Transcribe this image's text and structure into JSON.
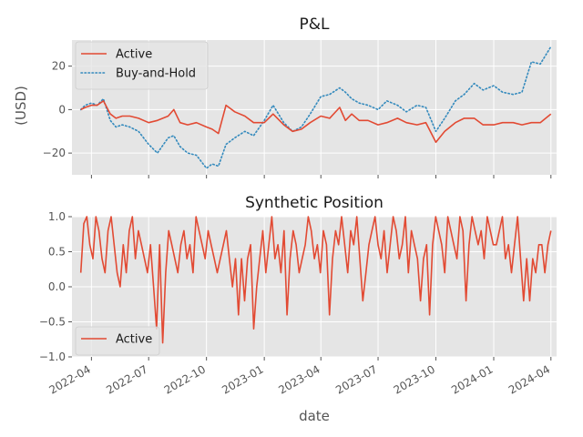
{
  "chart_data": [
    {
      "type": "line",
      "title": "P&L",
      "ylabel": "(USD)",
      "xlabel": "",
      "xlim": [
        "2022-03-01",
        "2024-04-10"
      ],
      "ylim": [
        -30,
        32
      ],
      "yticks": [
        -20,
        0,
        20
      ],
      "grid": true,
      "legend_position": "top-left",
      "series": [
        {
          "name": "Active",
          "style": "solid",
          "color": "#E24A33",
          "points": [
            [
              "2022-03-15",
              0
            ],
            [
              "2022-03-22",
              1
            ],
            [
              "2022-04-01",
              2
            ],
            [
              "2022-04-10",
              2
            ],
            [
              "2022-04-20",
              4
            ],
            [
              "2022-05-01",
              -2
            ],
            [
              "2022-05-10",
              -4
            ],
            [
              "2022-05-20",
              -3
            ],
            [
              "2022-06-01",
              -3
            ],
            [
              "2022-06-15",
              -4
            ],
            [
              "2022-07-01",
              -6
            ],
            [
              "2022-07-15",
              -5
            ],
            [
              "2022-08-01",
              -3
            ],
            [
              "2022-08-10",
              0
            ],
            [
              "2022-08-20",
              -6
            ],
            [
              "2022-09-01",
              -7
            ],
            [
              "2022-09-15",
              -6
            ],
            [
              "2022-10-01",
              -8
            ],
            [
              "2022-10-10",
              -9
            ],
            [
              "2022-10-20",
              -11
            ],
            [
              "2022-11-01",
              2
            ],
            [
              "2022-11-15",
              -1
            ],
            [
              "2022-12-01",
              -3
            ],
            [
              "2022-12-15",
              -6
            ],
            [
              "2023-01-01",
              -6
            ],
            [
              "2023-01-15",
              -2
            ],
            [
              "2023-02-01",
              -7
            ],
            [
              "2023-02-15",
              -10
            ],
            [
              "2023-03-01",
              -9
            ],
            [
              "2023-03-15",
              -6
            ],
            [
              "2023-04-01",
              -3
            ],
            [
              "2023-04-15",
              -4
            ],
            [
              "2023-05-01",
              1
            ],
            [
              "2023-05-10",
              -5
            ],
            [
              "2023-05-20",
              -2
            ],
            [
              "2023-06-01",
              -5
            ],
            [
              "2023-06-15",
              -5
            ],
            [
              "2023-07-01",
              -7
            ],
            [
              "2023-07-15",
              -6
            ],
            [
              "2023-08-01",
              -4
            ],
            [
              "2023-08-15",
              -6
            ],
            [
              "2023-09-01",
              -7
            ],
            [
              "2023-09-15",
              -6
            ],
            [
              "2023-10-01",
              -15
            ],
            [
              "2023-10-15",
              -10
            ],
            [
              "2023-11-01",
              -6
            ],
            [
              "2023-11-15",
              -4
            ],
            [
              "2023-12-01",
              -4
            ],
            [
              "2023-12-15",
              -7
            ],
            [
              "2024-01-01",
              -7
            ],
            [
              "2024-01-15",
              -6
            ],
            [
              "2024-02-01",
              -6
            ],
            [
              "2024-02-15",
              -7
            ],
            [
              "2024-03-01",
              -6
            ],
            [
              "2024-03-15",
              -6
            ],
            [
              "2024-04-01",
              -2
            ]
          ]
        },
        {
          "name": "Buy-and-Hold",
          "style": "dotted",
          "color": "#348ABD",
          "points": [
            [
              "2022-03-15",
              0
            ],
            [
              "2022-03-22",
              2
            ],
            [
              "2022-04-01",
              3
            ],
            [
              "2022-04-10",
              2
            ],
            [
              "2022-04-20",
              5
            ],
            [
              "2022-05-01",
              -5
            ],
            [
              "2022-05-10",
              -8
            ],
            [
              "2022-05-20",
              -7
            ],
            [
              "2022-06-01",
              -8
            ],
            [
              "2022-06-15",
              -10
            ],
            [
              "2022-07-01",
              -16
            ],
            [
              "2022-07-15",
              -20
            ],
            [
              "2022-08-01",
              -13
            ],
            [
              "2022-08-10",
              -12
            ],
            [
              "2022-08-20",
              -17
            ],
            [
              "2022-09-01",
              -20
            ],
            [
              "2022-09-15",
              -21
            ],
            [
              "2022-10-01",
              -27
            ],
            [
              "2022-10-10",
              -25
            ],
            [
              "2022-10-20",
              -26
            ],
            [
              "2022-11-01",
              -16
            ],
            [
              "2022-11-15",
              -13
            ],
            [
              "2022-12-01",
              -10
            ],
            [
              "2022-12-15",
              -12
            ],
            [
              "2023-01-01",
              -5
            ],
            [
              "2023-01-15",
              2
            ],
            [
              "2023-02-01",
              -6
            ],
            [
              "2023-02-15",
              -10
            ],
            [
              "2023-03-01",
              -8
            ],
            [
              "2023-03-15",
              -2
            ],
            [
              "2023-04-01",
              6
            ],
            [
              "2023-04-15",
              7
            ],
            [
              "2023-05-01",
              10
            ],
            [
              "2023-05-10",
              8
            ],
            [
              "2023-05-20",
              5
            ],
            [
              "2023-06-01",
              3
            ],
            [
              "2023-06-15",
              2
            ],
            [
              "2023-07-01",
              0
            ],
            [
              "2023-07-15",
              4
            ],
            [
              "2023-08-01",
              2
            ],
            [
              "2023-08-15",
              -1
            ],
            [
              "2023-09-01",
              2
            ],
            [
              "2023-09-15",
              1
            ],
            [
              "2023-10-01",
              -10
            ],
            [
              "2023-10-15",
              -4
            ],
            [
              "2023-11-01",
              4
            ],
            [
              "2023-11-15",
              7
            ],
            [
              "2023-12-01",
              12
            ],
            [
              "2023-12-15",
              9
            ],
            [
              "2024-01-01",
              11
            ],
            [
              "2024-01-15",
              8
            ],
            [
              "2024-02-01",
              7
            ],
            [
              "2024-02-15",
              8
            ],
            [
              "2024-03-01",
              22
            ],
            [
              "2024-03-15",
              21
            ],
            [
              "2024-04-01",
              29
            ]
          ]
        }
      ]
    },
    {
      "type": "line",
      "title": "Synthetic Position",
      "xlabel": "date",
      "ylabel": "",
      "xlim": [
        "2022-03-01",
        "2024-04-10"
      ],
      "ylim": [
        -1.0,
        1.0
      ],
      "yticks": [
        -1.0,
        -0.5,
        0.0,
        0.5,
        1.0
      ],
      "ytick_labels": [
        "−1.0",
        "−0.5",
        "0.0",
        "0.5",
        "1.0"
      ],
      "xticks": [
        "2022-04-01",
        "2022-07-01",
        "2022-10-01",
        "2023-01-01",
        "2023-04-01",
        "2023-07-01",
        "2023-10-01",
        "2024-01-01",
        "2024-04-01"
      ],
      "xtick_labels": [
        "2022-04",
        "2022-07",
        "2022-10",
        "2023-01",
        "2023-04",
        "2023-07",
        "2023-10",
        "2024-01",
        "2024-04"
      ],
      "grid": true,
      "legend_position": "bottom-left",
      "series": [
        {
          "name": "Active",
          "style": "solid",
          "color": "#E24A33",
          "values": [
            0.2,
            0.9,
            1.0,
            0.6,
            0.4,
            1.0,
            0.8,
            0.4,
            0.2,
            0.8,
            1.0,
            0.6,
            0.2,
            0.0,
            0.6,
            0.2,
            0.8,
            1.0,
            0.4,
            0.8,
            0.6,
            0.4,
            0.2,
            0.6,
            0.0,
            -0.6,
            0.6,
            -0.8,
            0.2,
            0.8,
            0.6,
            0.4,
            0.2,
            0.6,
            0.8,
            0.4,
            0.6,
            0.2,
            1.0,
            0.8,
            0.6,
            0.4,
            0.8,
            0.6,
            0.4,
            0.2,
            0.4,
            0.6,
            0.8,
            0.4,
            0.0,
            0.4,
            -0.4,
            0.4,
            -0.2,
            0.4,
            0.6,
            -0.6,
            0.0,
            0.4,
            0.8,
            0.2,
            0.6,
            1.0,
            0.4,
            0.6,
            0.2,
            0.8,
            -0.4,
            0.4,
            0.8,
            0.6,
            0.2,
            0.4,
            0.6,
            1.0,
            0.8,
            0.4,
            0.6,
            0.2,
            0.8,
            0.6,
            -0.4,
            0.4,
            0.8,
            0.6,
            1.0,
            0.6,
            0.2,
            0.8,
            0.6,
            1.0,
            0.4,
            -0.2,
            0.2,
            0.6,
            0.8,
            1.0,
            0.6,
            0.4,
            0.8,
            0.2,
            0.6,
            1.0,
            0.8,
            0.4,
            0.6,
            1.0,
            0.2,
            0.8,
            0.6,
            0.4,
            -0.2,
            0.4,
            0.6,
            -0.4,
            0.6,
            1.0,
            0.8,
            0.6,
            0.2,
            1.0,
            0.8,
            0.6,
            0.4,
            1.0,
            0.8,
            -0.2,
            0.6,
            1.0,
            0.8,
            0.6,
            0.8,
            0.4,
            1.0,
            0.8,
            0.6,
            0.6,
            0.8,
            1.0,
            0.4,
            0.6,
            0.2,
            0.6,
            1.0,
            0.4,
            -0.2,
            0.4,
            -0.2,
            0.4,
            0.2,
            0.6,
            0.6,
            0.2,
            0.6,
            0.8
          ]
        }
      ]
    }
  ]
}
